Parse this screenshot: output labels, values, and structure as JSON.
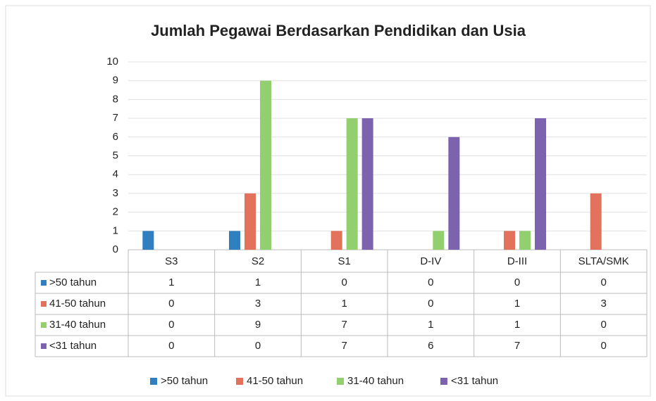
{
  "chart_data": {
    "type": "bar",
    "title": "Jumlah Pegawai Berdasarkan Pendidikan dan Usia",
    "categories": [
      "S3",
      "S2",
      "S1",
      "D-IV",
      "D-III",
      "SLTA/SMK"
    ],
    "series": [
      {
        "name": ">50 tahun",
        "color": "#2f7fc1",
        "values": [
          1,
          1,
          0,
          0,
          0,
          0
        ]
      },
      {
        "name": "41-50 tahun",
        "color": "#e2725b",
        "values": [
          0,
          3,
          1,
          0,
          1,
          3
        ]
      },
      {
        "name": "31-40 tahun",
        "color": "#92cf6e",
        "values": [
          0,
          9,
          7,
          1,
          1,
          0
        ]
      },
      {
        "name": "<31 tahun",
        "color": "#7d63ad",
        "values": [
          0,
          0,
          7,
          6,
          7,
          0
        ]
      }
    ],
    "ylim": [
      0,
      10
    ],
    "yticks": [
      0,
      1,
      2,
      3,
      4,
      5,
      6,
      7,
      8,
      9,
      10
    ],
    "grid": true,
    "legend": "bottom"
  }
}
